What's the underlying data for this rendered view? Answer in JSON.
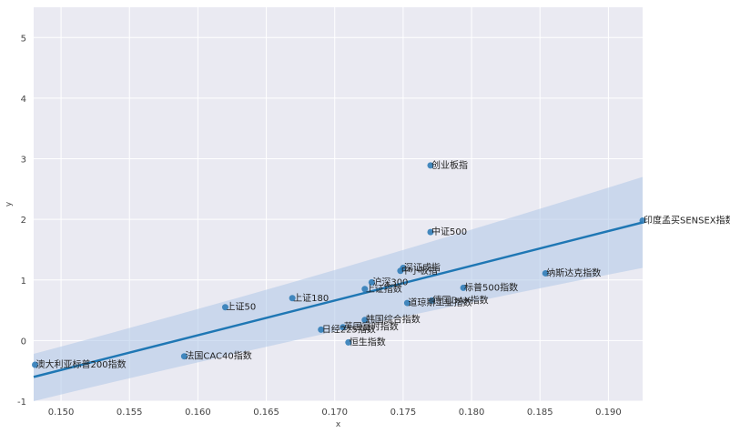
{
  "chart_data": {
    "type": "scatter",
    "title": "",
    "xlabel": "x",
    "ylabel": "y",
    "xlim": [
      0.148,
      0.1925
    ],
    "ylim": [
      -1,
      5.5
    ],
    "x_ticks": [
      0.15,
      0.155,
      0.16,
      0.165,
      0.17,
      0.175,
      0.18,
      0.185,
      0.19
    ],
    "x_tick_labels": [
      "0.150",
      "0.155",
      "0.160",
      "0.165",
      "0.170",
      "0.175",
      "0.180",
      "0.185",
      "0.190"
    ],
    "y_ticks": [
      -1,
      0,
      1,
      2,
      3,
      4,
      5
    ],
    "y_tick_labels": [
      "-1",
      "0",
      "1",
      "2",
      "3",
      "4",
      "5"
    ],
    "grid": true,
    "background_color": "#eaeaf2",
    "point_color": "#2878b5",
    "line_color": "#1f77b4",
    "band_color": "#aec7e8",
    "points": [
      {
        "label": "创业板指",
        "x": 0.177,
        "y": 2.89
      },
      {
        "label": "中证500",
        "x": 0.177,
        "y": 1.79
      },
      {
        "label": "印度孟买SENSEX指数",
        "x": 0.1925,
        "y": 1.98
      },
      {
        "label": "深证成指",
        "x": 0.175,
        "y": 1.2
      },
      {
        "label": "中小板指",
        "x": 0.1748,
        "y": 1.15
      },
      {
        "label": "纳斯达克指数",
        "x": 0.1854,
        "y": 1.11
      },
      {
        "label": "沪深300",
        "x": 0.1727,
        "y": 0.96
      },
      {
        "label": "上证指数",
        "x": 0.1722,
        "y": 0.85
      },
      {
        "label": "标普500指数",
        "x": 0.1794,
        "y": 0.87
      },
      {
        "label": "上证180",
        "x": 0.1669,
        "y": 0.7
      },
      {
        "label": "道琼斯工业指数",
        "x": 0.1753,
        "y": 0.62
      },
      {
        "label": "德国DAX指数",
        "x": 0.1771,
        "y": 0.66
      },
      {
        "label": "上证50",
        "x": 0.162,
        "y": 0.55
      },
      {
        "label": "韩国综合指数",
        "x": 0.1722,
        "y": 0.34
      },
      {
        "label": "日经225指数",
        "x": 0.169,
        "y": 0.18
      },
      {
        "label": "英国富时指数",
        "x": 0.1706,
        "y": 0.22
      },
      {
        "label": "恒生指数",
        "x": 0.171,
        "y": -0.03
      },
      {
        "label": "法国CAC40指数",
        "x": 0.159,
        "y": -0.26
      },
      {
        "label": "澳大利亚标普200指数",
        "x": 0.1481,
        "y": -0.4
      }
    ],
    "regression": {
      "x": [
        0.148,
        0.1925
      ],
      "y": [
        -0.6,
        1.95
      ],
      "ci_lower": [
        -1.0,
        1.2
      ],
      "ci_upper": [
        -0.22,
        2.7
      ]
    }
  }
}
